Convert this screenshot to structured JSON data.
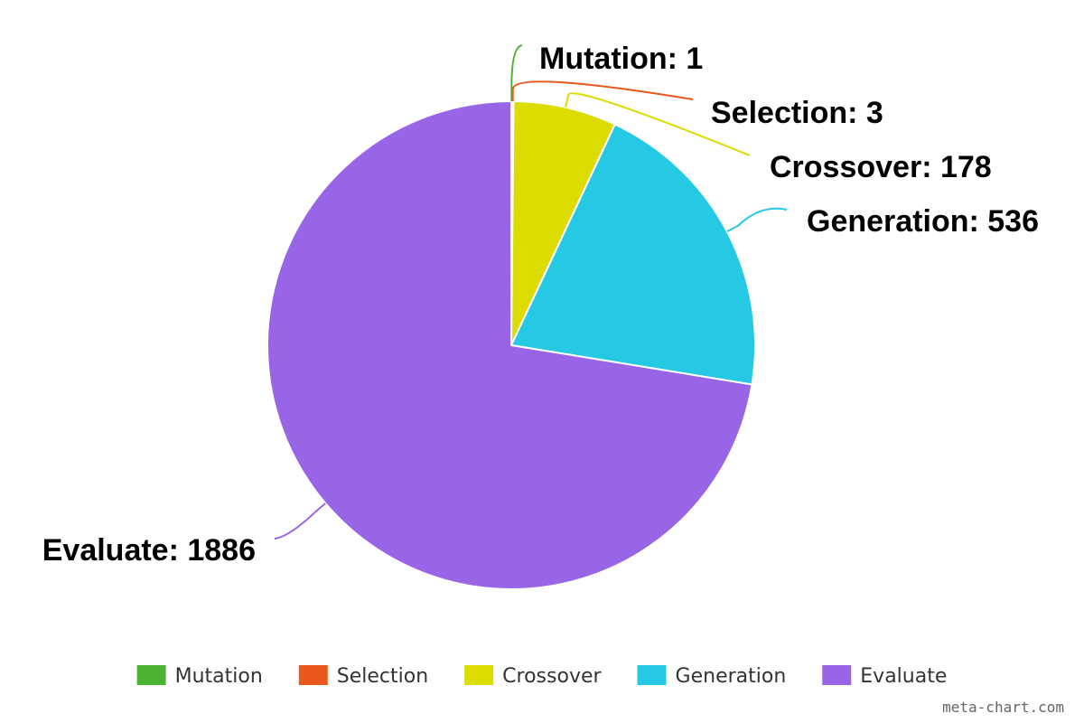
{
  "chart_data": {
    "type": "pie",
    "title": "",
    "slices": [
      {
        "name": "Mutation",
        "value": 1,
        "label": "Mutation: 1",
        "color": "#4cb232"
      },
      {
        "name": "Selection",
        "value": 3,
        "label": "Selection: 3",
        "color": "#e9561e"
      },
      {
        "name": "Crossover",
        "value": 178,
        "label": "Crossover: 178",
        "color": "#dcdc00"
      },
      {
        "name": "Generation",
        "value": 536,
        "label": "Generation: 536",
        "color": "#26c9e4"
      },
      {
        "name": "Evaluate",
        "value": 1886,
        "label": "Evaluate: 1886",
        "color": "#9865e6"
      }
    ],
    "legend_position": "bottom"
  },
  "watermark": "meta-chart.com"
}
